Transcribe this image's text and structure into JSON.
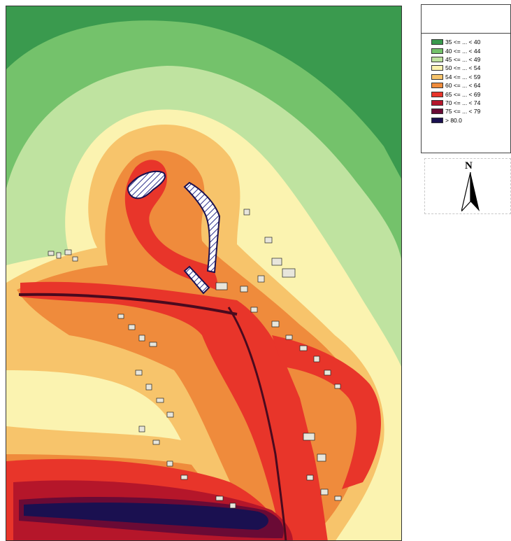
{
  "legend": {
    "title": "",
    "items": [
      {
        "label": "35 <= ... < 40",
        "color": "#3a9a4e"
      },
      {
        "label": "40 <= ... < 44",
        "color": "#74c26b"
      },
      {
        "label": "45 <= ... < 49",
        "color": "#bfe3a0"
      },
      {
        "label": "50 <= ... < 54",
        "color": "#fbf3b0"
      },
      {
        "label": "54 <= ... < 59",
        "color": "#f7c46b"
      },
      {
        "label": "60 <= ... < 64",
        "color": "#ef8b3c"
      },
      {
        "label": "65 <= ... < 69",
        "color": "#e8352a"
      },
      {
        "label": "70 <= ... < 74",
        "color": "#b5162a"
      },
      {
        "label": "75 <= ... < 79",
        "color": "#6a0a35"
      },
      {
        "label": "> 80.0",
        "color": "#1a1050"
      }
    ]
  },
  "north_arrow": {
    "letter": "N",
    "icon": "north-arrow-icon"
  }
}
